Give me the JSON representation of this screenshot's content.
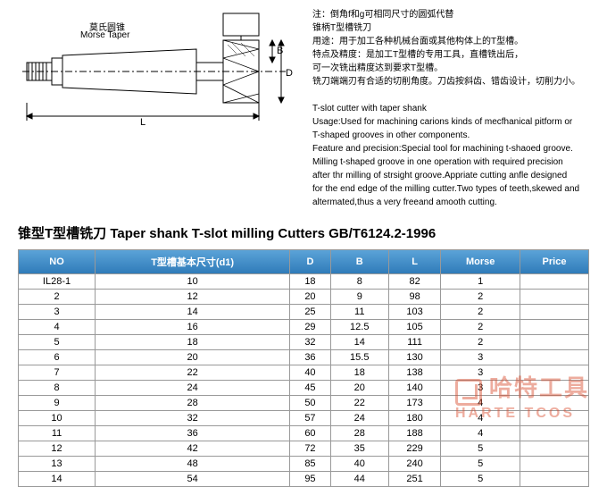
{
  "diagram": {
    "label_cn": "莫氏圆锥",
    "label_en": "Morse Taper",
    "letters": {
      "B": "B",
      "D": "D",
      "L": "L"
    }
  },
  "description": {
    "lines": [
      "注：倒角f和g可相同尺寸的圆弧代替",
      "锥柄T型槽铣刀",
      "用途：用于加工各种机械台面或其他构体上的T型槽。",
      "特点及精度：是加工T型槽的专用工具，直槽铣出后，",
      "可一次铣出精度达到要求T型槽。",
      "铣刀端端刃有合适的切削角度。刀齿按斜齿、错齿设计，切削力小。",
      "",
      "T-slot cutter with taper shank",
      "Usage:Used for machining carions kinds of mecfhanical pitform or",
      "T-shaped grooves in other components.",
      "Feature and precision:Special tool for machining t-shaoed groove.",
      "Milling t-shaped groove in one operation with required precision",
      "after thr milling of strsight groove.Appriate cutting anfle designed",
      "for the end edge of the milling cutter.Two types of teeth,skewed and",
      "altermated,thus a very freeand amooth cutting."
    ]
  },
  "title": "锥型T型槽铣刀 Taper shank T-slot milling Cutters    GB/T6124.2-1996",
  "table": {
    "columns": [
      "NO",
      "T型槽基本尺寸(d1)",
      "D",
      "B",
      "L",
      "Morse",
      "Price"
    ],
    "rows": [
      [
        "IL28-1",
        "10",
        "18",
        "8",
        "82",
        "1",
        ""
      ],
      [
        "2",
        "12",
        "20",
        "9",
        "98",
        "2",
        ""
      ],
      [
        "3",
        "14",
        "25",
        "11",
        "103",
        "2",
        ""
      ],
      [
        "4",
        "16",
        "29",
        "12.5",
        "105",
        "2",
        ""
      ],
      [
        "5",
        "18",
        "32",
        "14",
        "111",
        "2",
        ""
      ],
      [
        "6",
        "20",
        "36",
        "15.5",
        "130",
        "3",
        ""
      ],
      [
        "7",
        "22",
        "40",
        "18",
        "138",
        "3",
        ""
      ],
      [
        "8",
        "24",
        "45",
        "20",
        "140",
        "3",
        ""
      ],
      [
        "9",
        "28",
        "50",
        "22",
        "173",
        "4",
        ""
      ],
      [
        "10",
        "32",
        "57",
        "24",
        "180",
        "4",
        ""
      ],
      [
        "11",
        "36",
        "60",
        "28",
        "188",
        "4",
        ""
      ],
      [
        "12",
        "42",
        "72",
        "35",
        "229",
        "5",
        ""
      ],
      [
        "13",
        "48",
        "85",
        "40",
        "240",
        "5",
        ""
      ],
      [
        "14",
        "54",
        "95",
        "44",
        "251",
        "5",
        ""
      ]
    ],
    "header_bg_top": "#5ba3d8",
    "header_bg_bottom": "#2e7ab8",
    "border_color": "#999999"
  },
  "watermark": {
    "cn": "哈特工具",
    "en": "HARTE TCOS"
  }
}
